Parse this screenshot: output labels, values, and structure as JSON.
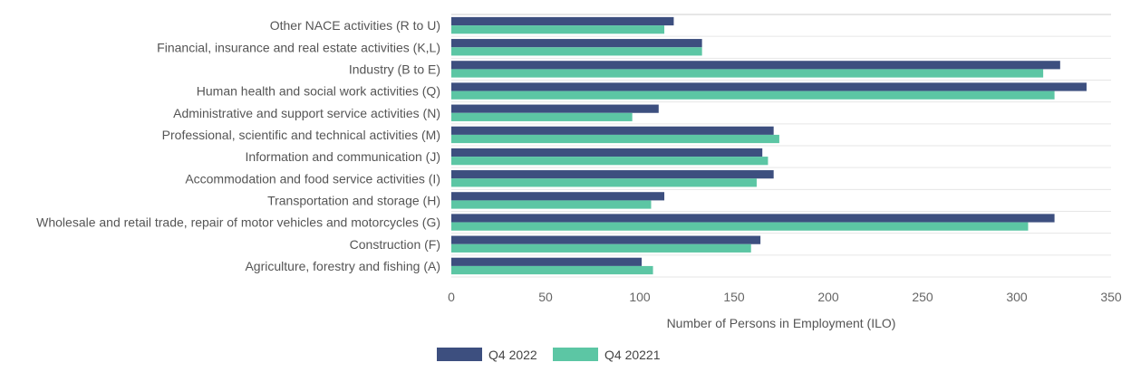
{
  "chart_data": {
    "type": "bar",
    "orientation": "horizontal",
    "title": "",
    "xlabel": "Number of Persons in Employment (ILO)",
    "ylabel": "",
    "xlim": [
      0,
      350
    ],
    "xticks": [
      0,
      50,
      100,
      150,
      200,
      250,
      300,
      350
    ],
    "grid": true,
    "legend_position": "bottom",
    "categories": [
      "Other NACE activities (R to U)",
      "Financial, insurance and real estate activities (K,L)",
      "Industry (B to E)",
      "Human health and social work activities (Q)",
      "Administrative and support service activities (N)",
      "Professional, scientific and technical activities (M)",
      "Information and communication (J)",
      "Accommodation and food service activities (I)",
      "Transportation and storage (H)",
      "Wholesale and retail trade, repair of motor vehicles and motorcycles (G)",
      "Construction (F)",
      "Agriculture, forestry and fishing (A)"
    ],
    "series": [
      {
        "name": "Q4 2022",
        "color": "#3d4f7f",
        "values": [
          118,
          133,
          323,
          337,
          110,
          171,
          165,
          171,
          113,
          320,
          164,
          101
        ]
      },
      {
        "name": "Q4 20221",
        "color": "#5cc6a4",
        "values": [
          113,
          133,
          314,
          320,
          96,
          174,
          168,
          162,
          106,
          306,
          159,
          107
        ]
      }
    ]
  }
}
